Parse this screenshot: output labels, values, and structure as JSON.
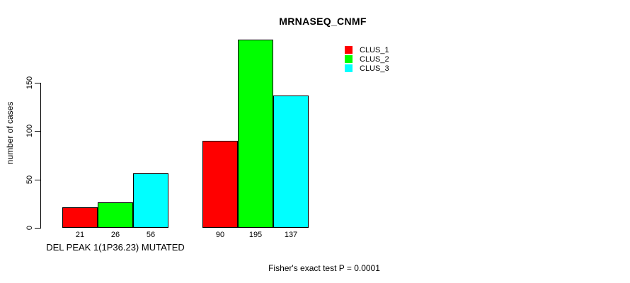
{
  "chart_data": {
    "type": "bar",
    "title": "MRNASEQ_CNMF",
    "ylabel": "number of cases",
    "xlabel": "",
    "ylim": [
      0,
      150
    ],
    "yticks": [
      0,
      50,
      100,
      150
    ],
    "grid": false,
    "legend_position": "top-right",
    "categories": [
      "DEL PEAK 1(1P36.23) MUTATED",
      ""
    ],
    "series": [
      {
        "name": "CLUS_1",
        "color": "#ff0000",
        "values": [
          21,
          90
        ]
      },
      {
        "name": "CLUS_2",
        "color": "#00ff00",
        "values": [
          26,
          195
        ]
      },
      {
        "name": "CLUS_3",
        "color": "#00ffff",
        "values": [
          56,
          137
        ]
      }
    ],
    "bar_value_labels": [
      [
        21,
        26,
        56
      ],
      [
        90,
        195,
        137
      ]
    ],
    "annotation": "Fisher's exact test P = 0.0001"
  }
}
